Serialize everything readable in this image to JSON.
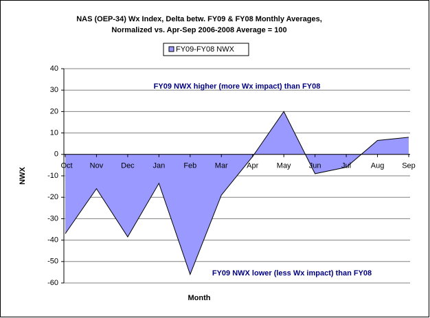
{
  "chart_data": {
    "type": "area",
    "title": [
      "NAS (OEP-34) Wx Index, Delta betw. FY09 & FY08 Monthly Averages,",
      "Normalized vs. Apr-Sep 2006-2008 Average = 100"
    ],
    "x_label": "Month",
    "y_label": "NWX",
    "categories": [
      "Oct",
      "Nov",
      "Dec",
      "Jan",
      "Feb",
      "Mar",
      "Apr",
      "May",
      "Jun",
      "Jul",
      "Aug",
      "Sep"
    ],
    "series": [
      {
        "name": "FY09-FY08 NWX",
        "color": "#9999ff",
        "values": [
          -37,
          -16,
          -38.5,
          -13.5,
          -56,
          -19,
          -1,
          20,
          -9,
          -6,
          6.5,
          8
        ]
      }
    ],
    "ylim": [
      -60,
      40
    ],
    "yticks": [
      -60,
      -50,
      -40,
      -30,
      -20,
      -10,
      0,
      10,
      20,
      30,
      40
    ],
    "grid": true,
    "annotations": [
      "FY09 NWX higher (more Wx impact) than FY08",
      "FY09 NWX lower (less Wx impact) than FY08"
    ]
  }
}
